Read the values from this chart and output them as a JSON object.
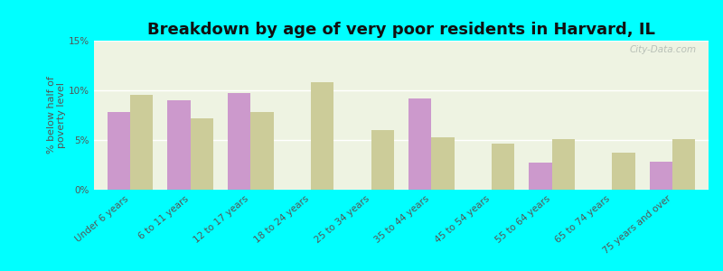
{
  "title": "Breakdown by age of very poor residents in Harvard, IL",
  "ylabel": "% below half of\npoverty level",
  "categories": [
    "Under 6 years",
    "6 to 11 years",
    "12 to 17 years",
    "18 to 24 years",
    "25 to 34 years",
    "35 to 44 years",
    "45 to 54 years",
    "55 to 64 years",
    "65 to 74 years",
    "75 years and over"
  ],
  "harvard_values": [
    7.8,
    9.0,
    9.7,
    0.0,
    0.0,
    9.2,
    0.0,
    2.7,
    0.0,
    2.8
  ],
  "illinois_values": [
    9.5,
    7.2,
    7.8,
    10.8,
    6.0,
    5.3,
    4.6,
    5.1,
    3.7,
    5.1
  ],
  "harvard_color": "#cc99cc",
  "illinois_color": "#cccc99",
  "background_color": "#00ffff",
  "plot_bg": "#eef3e2",
  "ylim": [
    0,
    15
  ],
  "yticks": [
    0,
    5,
    10,
    15
  ],
  "ytick_labels": [
    "0%",
    "5%",
    "10%",
    "15%"
  ],
  "bar_width": 0.38,
  "title_fontsize": 13,
  "label_fontsize": 7.5,
  "watermark": "City-Data.com"
}
